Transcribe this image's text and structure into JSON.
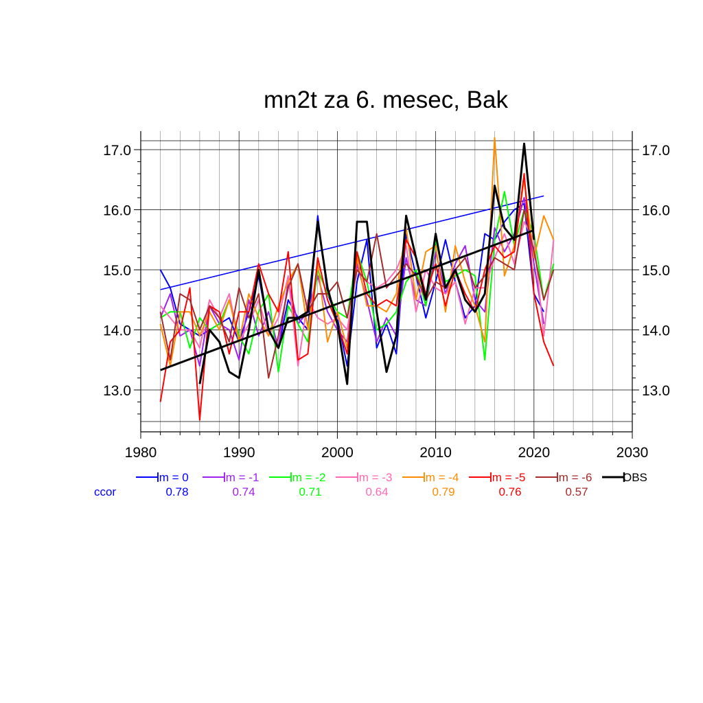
{
  "chart_data": {
    "type": "line",
    "title": "mn2t za 6. mesec, Bak",
    "xlim": [
      1980,
      2030
    ],
    "ylim": [
      12.5,
      17.15
    ],
    "x_ticks": [
      1980,
      1990,
      2000,
      2010,
      2020,
      2030
    ],
    "x_tick_labels": [
      "1980",
      "1990",
      "2000",
      "2010",
      "2020",
      "2030"
    ],
    "y_ticks": [
      13.0,
      14.0,
      15.0,
      16.0,
      17.0
    ],
    "y_tick_labels": [
      "13.0",
      "14.0",
      "15.0",
      "16.0",
      "17.0"
    ],
    "grid": true,
    "legend_position": "bottom",
    "ccor_label": "ccor",
    "series": [
      {
        "name": "lm = 0",
        "color": "#0000ff",
        "ccor": "0.78",
        "x": [
          1982,
          1983,
          1984,
          1985,
          1986,
          1987,
          1988,
          1989,
          1990,
          1991,
          1992,
          1993,
          1994,
          1995,
          1996,
          1997,
          1998,
          1999,
          2000,
          2001,
          2002,
          2003,
          2004,
          2005,
          2006,
          2007,
          2008,
          2009,
          2010,
          2011,
          2012,
          2013,
          2014,
          2015,
          2016,
          2017,
          2018,
          2019,
          2020,
          2021
        ],
        "values": [
          15.0,
          14.7,
          14.1,
          14.0,
          13.9,
          14.0,
          14.1,
          14.2,
          13.8,
          14.3,
          14.9,
          14.0,
          13.7,
          14.5,
          14.2,
          14.0,
          15.9,
          14.6,
          14.2,
          13.4,
          14.8,
          15.5,
          13.7,
          14.1,
          13.6,
          15.6,
          14.9,
          14.2,
          14.8,
          15.5,
          14.8,
          14.2,
          14.4,
          15.6,
          15.5,
          15.8,
          16.0,
          16.1,
          14.6,
          14.3
        ],
        "trend": [
          [
            1982,
            14.67
          ],
          [
            2021,
            16.23
          ]
        ]
      },
      {
        "name": "lm = -1",
        "color": "#a020f0",
        "ccor": "0.74",
        "x": [
          1982,
          1983,
          1984,
          1985,
          1986,
          1987,
          1988,
          1989,
          1990,
          1991,
          1992,
          1993,
          1994,
          1995,
          1996,
          1997,
          1998,
          1999,
          2000,
          2001,
          2002,
          2003,
          2004,
          2005,
          2006,
          2007,
          2008,
          2009,
          2010,
          2011,
          2012,
          2013,
          2014,
          2015,
          2016,
          2017,
          2018,
          2019,
          2020,
          2021
        ],
        "values": [
          14.2,
          14.6,
          13.9,
          14.0,
          13.4,
          14.4,
          14.1,
          14.0,
          13.5,
          14.5,
          13.9,
          14.3,
          13.7,
          14.8,
          14.1,
          14.3,
          14.9,
          14.3,
          14.0,
          13.8,
          15.1,
          14.5,
          13.8,
          14.2,
          13.9,
          15.2,
          14.5,
          14.4,
          15.3,
          14.6,
          15.1,
          15.4,
          14.5,
          14.3,
          15.7,
          15.3,
          15.6,
          16.2,
          15.1,
          14.1
        ]
      },
      {
        "name": "lm = -2",
        "color": "#00ff00",
        "ccor": "0.71",
        "x": [
          1982,
          1983,
          1984,
          1985,
          1986,
          1987,
          1988,
          1989,
          1990,
          1991,
          1992,
          1993,
          1994,
          1995,
          1996,
          1997,
          1998,
          1999,
          2000,
          2001,
          2002,
          2003,
          2004,
          2005,
          2006,
          2007,
          2008,
          2009,
          2010,
          2011,
          2012,
          2013,
          2014,
          2015,
          2016,
          2017,
          2018,
          2019,
          2020,
          2021,
          2022
        ],
        "values": [
          14.2,
          14.3,
          14.3,
          13.7,
          14.2,
          14.0,
          14.1,
          14.5,
          13.9,
          13.6,
          14.3,
          14.6,
          13.3,
          14.4,
          14.1,
          13.8,
          15.0,
          14.6,
          14.3,
          14.2,
          15.3,
          14.8,
          14.0,
          14.1,
          14.3,
          14.8,
          15.0,
          14.4,
          15.5,
          14.8,
          14.9,
          15.0,
          14.9,
          13.5,
          15.5,
          16.3,
          15.4,
          16.0,
          15.6,
          14.5,
          15.1
        ]
      },
      {
        "name": "lm = -3",
        "color": "#ff69b4",
        "ccor": "0.64",
        "x": [
          1982,
          1983,
          1984,
          1985,
          1986,
          1987,
          1988,
          1989,
          1990,
          1991,
          1992,
          1993,
          1994,
          1995,
          1996,
          1997,
          1998,
          1999,
          2000,
          2001,
          2002,
          2003,
          2004,
          2005,
          2006,
          2007,
          2008,
          2009,
          2010,
          2011,
          2012,
          2013,
          2014,
          2015,
          2016,
          2017,
          2018,
          2019,
          2020,
          2021,
          2022
        ],
        "values": [
          14.4,
          14.2,
          14.0,
          14.0,
          13.7,
          14.5,
          14.2,
          14.6,
          13.8,
          14.1,
          14.5,
          13.9,
          14.2,
          14.9,
          13.4,
          14.5,
          14.2,
          14.1,
          14.2,
          14.0,
          15.0,
          14.8,
          14.7,
          14.8,
          15.0,
          15.4,
          14.3,
          15.0,
          14.7,
          14.6,
          14.8,
          14.1,
          14.7,
          14.7,
          15.2,
          15.6,
          15.1,
          15.8,
          15.5,
          13.9,
          15.5
        ]
      },
      {
        "name": "lm = -4",
        "color": "#ff8c00",
        "ccor": "0.79",
        "x": [
          1982,
          1983,
          1984,
          1985,
          1986,
          1987,
          1988,
          1989,
          1990,
          1991,
          1992,
          1993,
          1994,
          1995,
          1996,
          1997,
          1998,
          1999,
          2000,
          2001,
          2002,
          2003,
          2004,
          2005,
          2006,
          2007,
          2008,
          2009,
          2010,
          2011,
          2012,
          2013,
          2014,
          2015,
          2016,
          2017,
          2018,
          2019,
          2020,
          2021,
          2022
        ],
        "values": [
          14.1,
          13.4,
          14.3,
          14.3,
          13.9,
          14.3,
          14.0,
          14.5,
          13.8,
          14.6,
          14.2,
          13.9,
          14.4,
          14.8,
          15.1,
          14.0,
          15.1,
          13.8,
          14.3,
          13.7,
          15.2,
          14.4,
          14.4,
          14.3,
          14.6,
          15.7,
          14.5,
          15.3,
          15.4,
          14.3,
          15.4,
          14.8,
          14.4,
          13.8,
          17.2,
          14.9,
          15.4,
          16.5,
          15.2,
          15.9,
          15.5
        ]
      },
      {
        "name": "lm = -5",
        "color": "#ff0000",
        "ccor": "0.76",
        "x": [
          1982,
          1983,
          1984,
          1985,
          1986,
          1987,
          1988,
          1989,
          1990,
          1991,
          1992,
          1993,
          1994,
          1995,
          1996,
          1997,
          1998,
          1999,
          2000,
          2001,
          2002,
          2003,
          2004,
          2005,
          2006,
          2007,
          2008,
          2009,
          2010,
          2011,
          2012,
          2013,
          2014,
          2015,
          2016,
          2017,
          2018,
          2019,
          2020,
          2021,
          2022
        ],
        "values": [
          12.8,
          13.8,
          14.0,
          14.7,
          12.5,
          14.4,
          14.3,
          13.6,
          14.3,
          14.3,
          15.1,
          14.6,
          14.3,
          15.3,
          13.5,
          13.6,
          15.2,
          14.5,
          14.1,
          13.6,
          15.3,
          14.6,
          14.4,
          14.5,
          14.4,
          15.5,
          15.2,
          14.6,
          15.1,
          14.4,
          15.0,
          14.6,
          14.3,
          15.0,
          15.4,
          15.2,
          15.3,
          16.6,
          14.6,
          13.8,
          13.4
        ]
      },
      {
        "name": "lm = -6",
        "color": "#a52a2a",
        "ccor": "0.57",
        "x": [
          1982,
          1983,
          1984,
          1985,
          1986,
          1987,
          1988,
          1989,
          1990,
          1991,
          1992,
          1993,
          1994,
          1995,
          1996,
          1997,
          1998,
          1999,
          2000,
          2001,
          2002,
          2003,
          2004,
          2005,
          2006,
          2007,
          2008,
          2009,
          2010,
          2011,
          2012,
          2013,
          2014,
          2015,
          2016,
          2017,
          2018,
          2019,
          2020,
          2021,
          2022
        ],
        "values": [
          14.3,
          13.5,
          14.6,
          14.5,
          14.0,
          14.4,
          14.2,
          13.8,
          14.7,
          14.2,
          14.6,
          13.2,
          13.9,
          14.7,
          15.1,
          14.3,
          14.6,
          14.6,
          14.8,
          14.2,
          15.0,
          14.8,
          15.6,
          14.7,
          14.9,
          15.1,
          14.9,
          14.5,
          14.8,
          14.7,
          15.0,
          15.2,
          14.7,
          14.9,
          15.2,
          15.1,
          15.0,
          16.0,
          15.3,
          14.5,
          15.0
        ]
      },
      {
        "name": "OBS",
        "color": "#000000",
        "ccor": "",
        "x": [
          1986,
          1987,
          1988,
          1989,
          1990,
          1991,
          1992,
          1993,
          1994,
          1995,
          1996,
          1997,
          1998,
          1999,
          2000,
          2001,
          2002,
          2003,
          2004,
          2005,
          2006,
          2007,
          2008,
          2009,
          2010,
          2011,
          2012,
          2013,
          2014,
          2015,
          2016,
          2017,
          2018,
          2019,
          2020
        ],
        "values": [
          13.1,
          14.0,
          13.8,
          13.3,
          13.2,
          14.0,
          15.0,
          14.0,
          13.7,
          14.2,
          14.2,
          14.3,
          15.8,
          14.7,
          14.1,
          13.1,
          15.8,
          15.8,
          14.3,
          13.3,
          13.9,
          15.9,
          15.2,
          14.5,
          15.6,
          14.7,
          15.0,
          14.5,
          14.3,
          14.6,
          16.4,
          15.7,
          15.5,
          17.1,
          15.5
        ],
        "trend": [
          [
            1982,
            13.33
          ],
          [
            2020,
            15.66
          ]
        ]
      }
    ]
  }
}
